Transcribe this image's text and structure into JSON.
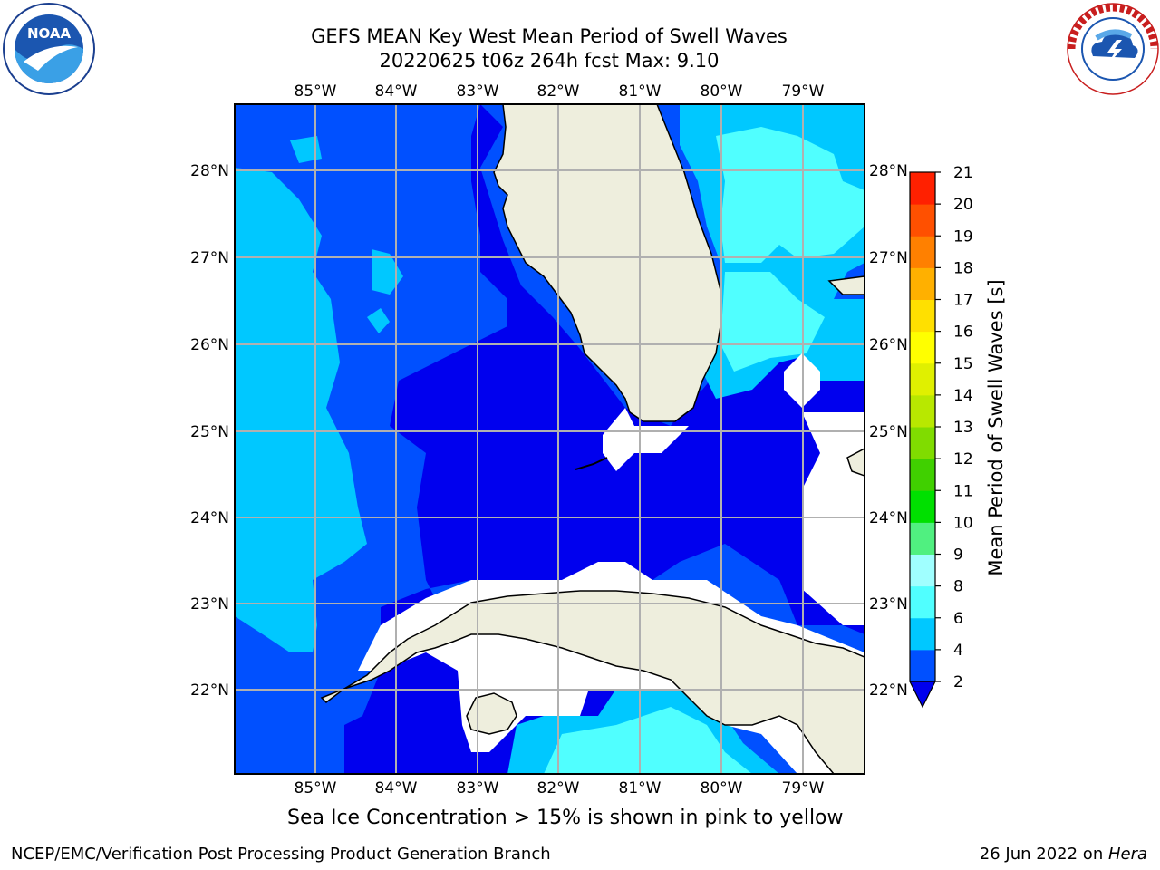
{
  "title_line1": "GEFS MEAN Key West Mean Period of Swell Waves",
  "title_line2": "20220625 t06z 264h fcst   Max: 9.10",
  "longitude_labels": [
    "85°W",
    "84°W",
    "83°W",
    "82°W",
    "81°W",
    "80°W",
    "79°W"
  ],
  "latitude_labels": [
    "28°N",
    "27°N",
    "26°N",
    "25°N",
    "24°N",
    "23°N",
    "22°N"
  ],
  "colorbar": {
    "title": "Mean Period of Swell Waves [s]",
    "ticks": [
      "2",
      "4",
      "6",
      "8",
      "9",
      "10",
      "11",
      "12",
      "13",
      "14",
      "15",
      "16",
      "17",
      "18",
      "19",
      "20",
      "21"
    ],
    "colors": [
      "#0050ff",
      "#00c8ff",
      "#50ffff",
      "#a0ffff",
      "#50f080",
      "#00e000",
      "#40d000",
      "#80dc00",
      "#b8e800",
      "#e0f000",
      "#ffff00",
      "#ffe000",
      "#ffb000",
      "#ff8000",
      "#ff5000",
      "#ff2000"
    ],
    "under_color": "#0000ee"
  },
  "field_colors": {
    "band_2_4": "#0050ff",
    "band_4_6": "#00c8ff",
    "band_6_8": "#50ffff",
    "below_2": "#0000ee",
    "land": "#eeeedd",
    "missing": "#ffffff"
  },
  "logos": {
    "left": "NOAA",
    "left_ring": "NATIONAL OCEANIC AND ATMOSPHERIC ADMINISTRATION · U.S. DEPARTMENT OF COMMERCE",
    "right_ring": "NATIONAL WEATHER SERVICE"
  },
  "footnote": "Sea Ice Concentration > 15% is shown in pink to yellow",
  "footer_left": "NCEP/EMC/Verification Post Processing Product Generation Branch",
  "footer_right_prefix": "26 Jun 2022 on ",
  "footer_right_host": "Hera"
}
